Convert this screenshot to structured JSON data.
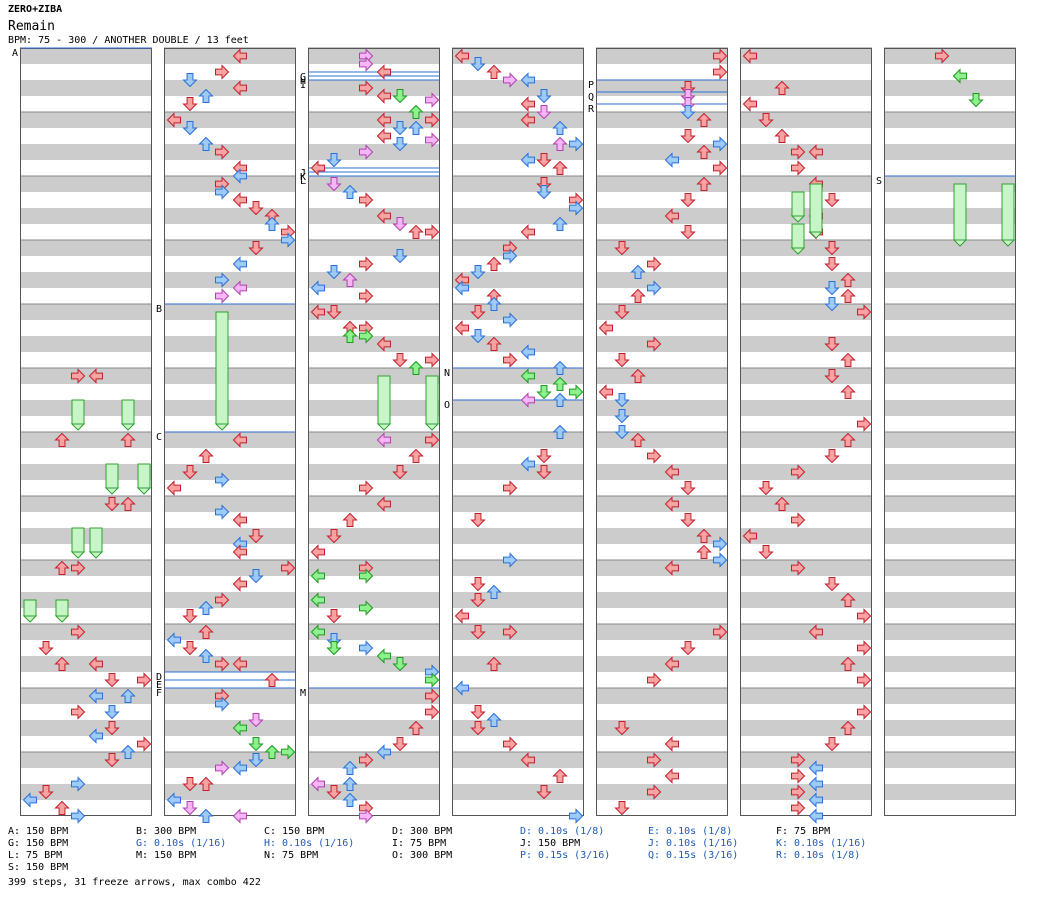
{
  "header": {
    "artist": "ZERO+ZIBA",
    "title": "Remain",
    "info": "BPM: 75 - 300 / ANOTHER DOUBLE / 13 feet"
  },
  "colors": {
    "stripe": "#cccccc",
    "border": "#000000",
    "marker_line": "#2a6fd6",
    "quarter": "#f7a3a3",
    "quarter_stroke": "#c0202a",
    "eighth": "#9ecbf5",
    "eighth_stroke": "#2a6fd6",
    "sixteenth": "#8ef08e",
    "sixteenth_stroke": "#1d9a1d",
    "other": "#f5b6f5",
    "other_stroke": "#b040b0",
    "freeze_fill": "#c8f5c8",
    "freeze_stroke": "#30a030"
  },
  "markers": {
    "A": "A",
    "B": "B",
    "C": "C",
    "D": "D",
    "E": "E",
    "F": "F",
    "G": "G",
    "H": "H",
    "I": "I",
    "J": "J",
    "K": "K",
    "L": "L",
    "M": "M",
    "N": "N",
    "O": "O",
    "P": "P",
    "Q": "Q",
    "R": "R",
    "S": "S"
  },
  "legend": [
    {
      "text": "A: 150 BPM",
      "blue": false
    },
    {
      "text": "B: 300 BPM",
      "blue": false
    },
    {
      "text": "C: 150 BPM",
      "blue": false
    },
    {
      "text": "D: 300 BPM",
      "blue": false
    },
    {
      "text": "D: 0.10s (1/8)",
      "blue": true
    },
    {
      "text": "E: 0.10s (1/8)",
      "blue": true
    },
    {
      "text": "F: 75 BPM",
      "blue": false
    },
    {
      "text": "G: 150 BPM",
      "blue": false
    },
    {
      "text": "G: 0.10s (1/16)",
      "blue": true
    },
    {
      "text": "H: 0.10s (1/16)",
      "blue": true
    },
    {
      "text": "I: 75 BPM",
      "blue": false
    },
    {
      "text": "J: 150 BPM",
      "blue": false
    },
    {
      "text": "J: 0.10s (1/16)",
      "blue": true
    },
    {
      "text": "K: 0.10s (1/16)",
      "blue": true
    },
    {
      "text": "L: 75 BPM",
      "blue": false
    },
    {
      "text": "M: 150 BPM",
      "blue": false
    },
    {
      "text": "N: 75 BPM",
      "blue": false
    },
    {
      "text": "O: 300 BPM",
      "blue": false
    },
    {
      "text": "P: 0.15s (3/16)",
      "blue": true
    },
    {
      "text": "Q: 0.15s (3/16)",
      "blue": true
    },
    {
      "text": "R: 0.10s (1/8)",
      "blue": true
    },
    {
      "text": "S: 150 BPM",
      "blue": false
    }
  ],
  "summary": "399 steps, 31 freeze arrows, max combo 422"
}
